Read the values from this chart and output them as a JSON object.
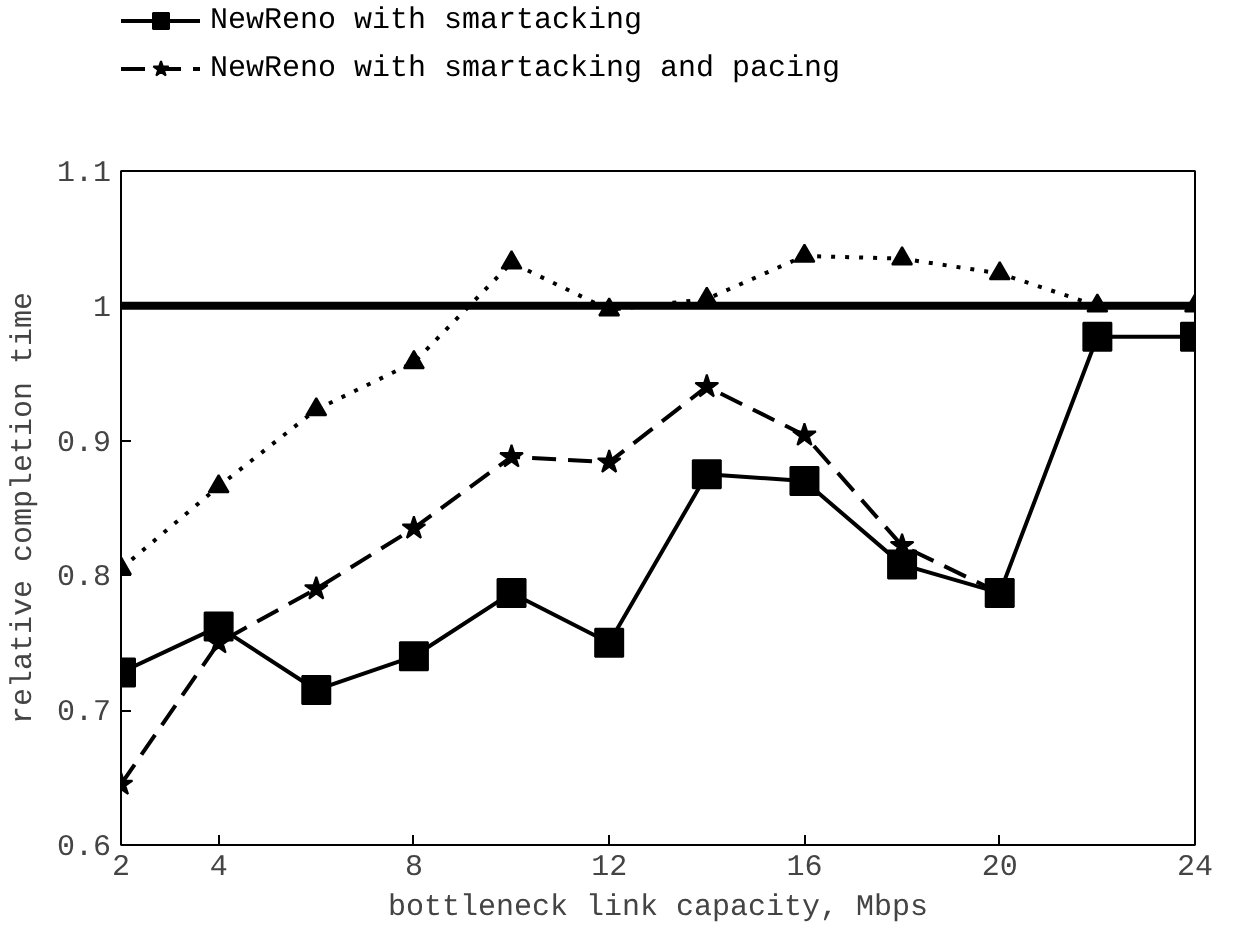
{
  "chart_data": {
    "type": "line",
    "xlabel": "bottleneck link capacity, Mbps",
    "ylabel": "relative completion time",
    "x": [
      2,
      4,
      6,
      8,
      10,
      12,
      14,
      16,
      18,
      20,
      22,
      24
    ],
    "series": [
      {
        "name": "NewReno with smartacking",
        "color": "#000000",
        "marker": "square",
        "line_style": "solid",
        "values": [
          0.728,
          0.762,
          0.715,
          0.74,
          0.787,
          0.75,
          0.875,
          0.87,
          0.808,
          0.787,
          0.977,
          0.977
        ]
      },
      {
        "name": "NewReno with smartacking and pacing",
        "color": "#000000",
        "marker": "star",
        "line_style": "dashed",
        "values": [
          0.645,
          0.75,
          0.79,
          0.835,
          0.888,
          0.884,
          0.94,
          0.904,
          0.822,
          0.787,
          null,
          null
        ]
      },
      {
        "color": "#000000",
        "marker": "triangle",
        "line_style": "dotted",
        "values": [
          0.805,
          0.866,
          0.923,
          0.958,
          1.032,
          0.997,
          1.005,
          1.037,
          1.035,
          1.024,
          1.0,
          1.0
        ]
      }
    ],
    "ref_lines": [
      {
        "axis": "y",
        "value": 1,
        "color": "#000000",
        "line_style": "solid"
      }
    ],
    "xlim": [
      2,
      24
    ],
    "xticks": [
      2,
      4,
      8,
      12,
      16,
      20,
      24
    ],
    "ylim": [
      0.6,
      1.1
    ],
    "yticks": [
      0.6,
      0.7,
      0.8,
      0.9,
      1,
      1.1
    ],
    "grid": false,
    "legend": "top"
  }
}
